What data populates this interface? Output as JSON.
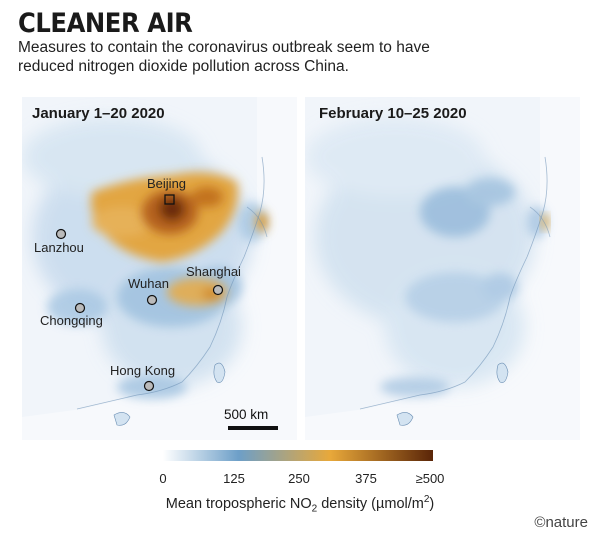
{
  "header": {
    "title": "CLEANER AIR",
    "subtitle": "Measures to contain the coronavirus outbreak seem to have reduced nitrogen dioxide pollution across China."
  },
  "panels": [
    {
      "title": "January 1–20 2020"
    },
    {
      "title": "February 10–25 2020"
    }
  ],
  "cities": {
    "beijing": "Beijing",
    "lanzhou": "Lanzhou",
    "shanghai": "Shanghai",
    "wuhan": "Wuhan",
    "chongqing": "Chongqing",
    "hong_kong": "Hong Kong"
  },
  "scale_bar": {
    "label": "500 km"
  },
  "legend": {
    "ticks": [
      "0",
      "125",
      "250",
      "375",
      "≥500"
    ],
    "label_pre": "Mean tropospheric NO",
    "label_sub": "2",
    "label_mid": " density (µmol/m",
    "label_sup": "2",
    "label_post": ")",
    "colors": [
      "#ffffff",
      "#6d9fc8",
      "#e8a83a",
      "#5a2508"
    ]
  },
  "credit": "©nature"
}
